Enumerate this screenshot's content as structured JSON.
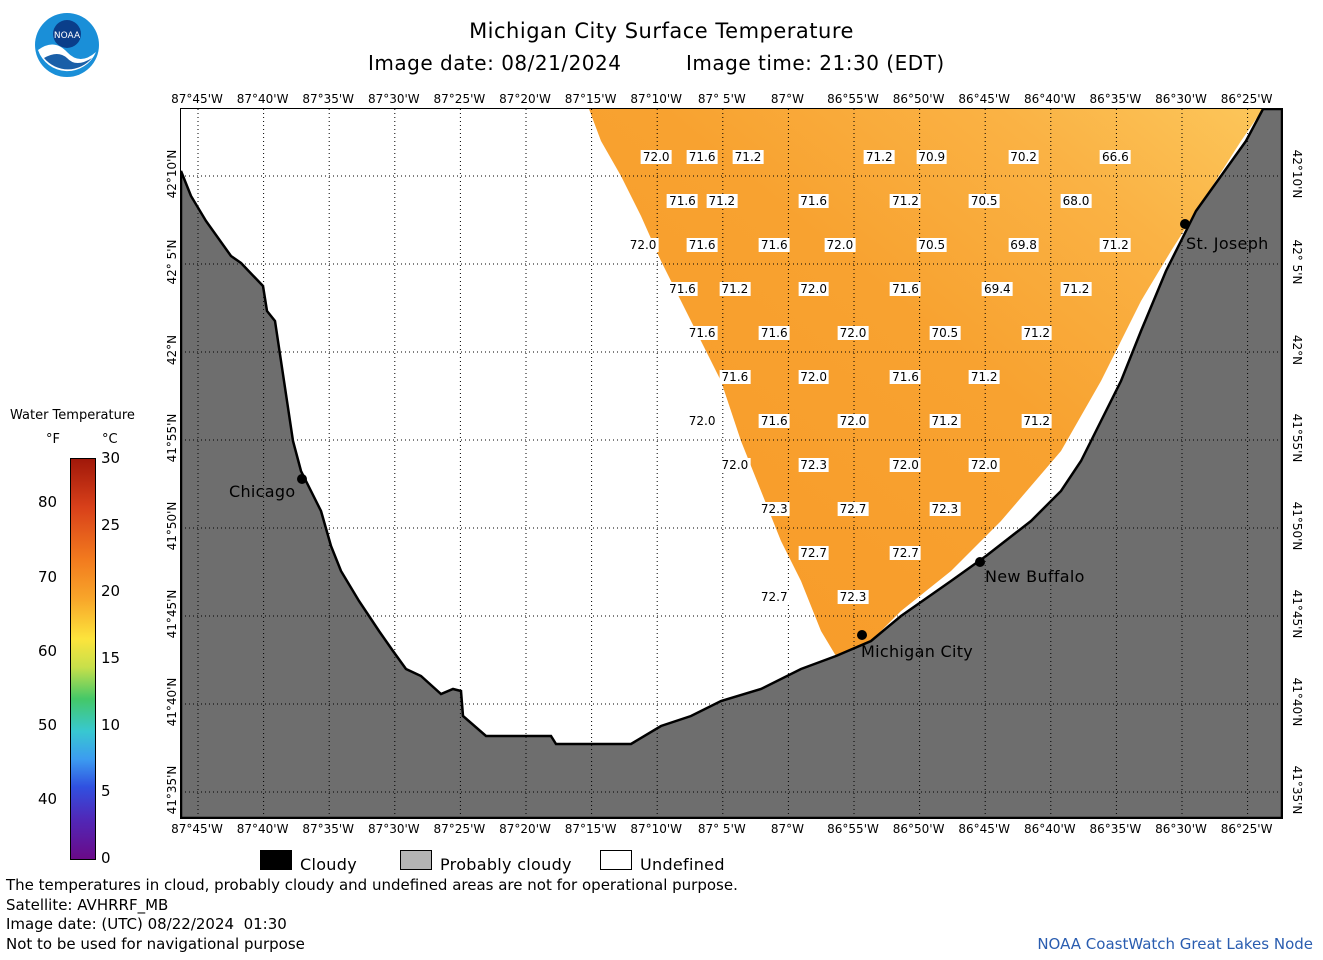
{
  "header": {
    "title": "Michigan City Surface Temperature",
    "image_date": "Image date: 08/21/2024",
    "image_time": "Image time: 21:30 (EDT)",
    "logo_text": "NOAA"
  },
  "map": {
    "lon_labels": [
      "87°45'W",
      "87°40'W",
      "87°35'W",
      "87°30'W",
      "87°25'W",
      "87°20'W",
      "87°15'W",
      "87°10'W",
      "87° 5'W",
      "87°W",
      "86°55'W",
      "86°50'W",
      "86°45'W",
      "86°40'W",
      "86°35'W",
      "86°30'W",
      "86°25'W"
    ],
    "lat_labels": [
      "42°10'N",
      "42° 5'N",
      "42°N",
      "41°55'N",
      "41°50'N",
      "41°45'N",
      "41°40'N",
      "41°35'N"
    ],
    "temperatures": [
      {
        "value": "72.0",
        "lon": "87°10'W",
        "lat": "42°11'N"
      },
      {
        "value": "71.6",
        "lon": "87°6.5'W",
        "lat": "42°11'N"
      },
      {
        "value": "71.2",
        "lon": "87°3'W",
        "lat": "42°11'N"
      },
      {
        "value": "71.2",
        "lon": "86°53'W",
        "lat": "42°11'N"
      },
      {
        "value": "70.9",
        "lon": "86°49'W",
        "lat": "42°11'N"
      },
      {
        "value": "70.2",
        "lon": "86°42'W",
        "lat": "42°11'N"
      },
      {
        "value": "66.6",
        "lon": "86°35'W",
        "lat": "42°11'N"
      },
      {
        "value": "71.6",
        "lon": "87°8'W",
        "lat": "42°8.5'N"
      },
      {
        "value": "71.2",
        "lon": "87°5'W",
        "lat": "42°8.5'N"
      },
      {
        "value": "71.6",
        "lon": "86°58'W",
        "lat": "42°8.5'N"
      },
      {
        "value": "71.2",
        "lon": "86°51'W",
        "lat": "42°8.5'N"
      },
      {
        "value": "70.5",
        "lon": "86°45'W",
        "lat": "42°8.5'N"
      },
      {
        "value": "68.0",
        "lon": "86°38'W",
        "lat": "42°8.5'N"
      },
      {
        "value": "72.0",
        "lon": "87°11'W",
        "lat": "42°6'N"
      },
      {
        "value": "71.6",
        "lon": "87°6.5'W",
        "lat": "42°6'N"
      },
      {
        "value": "71.6",
        "lon": "87°1'W",
        "lat": "42°6'N"
      },
      {
        "value": "72.0",
        "lon": "86°56'W",
        "lat": "42°6'N"
      },
      {
        "value": "70.5",
        "lon": "86°49'W",
        "lat": "42°6'N"
      },
      {
        "value": "69.8",
        "lon": "86°42'W",
        "lat": "42°6'N"
      },
      {
        "value": "71.2",
        "lon": "86°35'W",
        "lat": "42°6'N"
      },
      {
        "value": "71.6",
        "lon": "87°8'W",
        "lat": "42°3.5'N"
      },
      {
        "value": "71.2",
        "lon": "87°4'W",
        "lat": "42°3.5'N"
      },
      {
        "value": "72.0",
        "lon": "86°58'W",
        "lat": "42°3.5'N"
      },
      {
        "value": "71.6",
        "lon": "86°51'W",
        "lat": "42°3.5'N"
      },
      {
        "value": "69.4",
        "lon": "86°44'W",
        "lat": "42°3.5'N"
      },
      {
        "value": "71.2",
        "lon": "86°38'W",
        "lat": "42°3.5'N"
      },
      {
        "value": "71.6",
        "lon": "87°6.5'W",
        "lat": "42°1'N"
      },
      {
        "value": "71.6",
        "lon": "87°1'W",
        "lat": "42°1'N"
      },
      {
        "value": "72.0",
        "lon": "86°55'W",
        "lat": "42°1'N"
      },
      {
        "value": "70.5",
        "lon": "86°48'W",
        "lat": "42°1'N"
      },
      {
        "value": "71.2",
        "lon": "86°41'W",
        "lat": "42°1'N"
      },
      {
        "value": "71.6",
        "lon": "87°4'W",
        "lat": "41°58.5'N"
      },
      {
        "value": "72.0",
        "lon": "86°58'W",
        "lat": "41°58.5'N"
      },
      {
        "value": "71.6",
        "lon": "86°51'W",
        "lat": "41°58.5'N"
      },
      {
        "value": "71.2",
        "lon": "86°45'W",
        "lat": "41°58.5'N"
      },
      {
        "value": "72.0",
        "lon": "87°6.5'W",
        "lat": "41°56'N"
      },
      {
        "value": "71.6",
        "lon": "87°1'W",
        "lat": "41°56'N"
      },
      {
        "value": "72.0",
        "lon": "86°55'W",
        "lat": "41°56'N"
      },
      {
        "value": "71.2",
        "lon": "86°48'W",
        "lat": "41°56'N"
      },
      {
        "value": "71.2",
        "lon": "86°41'W",
        "lat": "41°56'N"
      },
      {
        "value": "72.0",
        "lon": "87°4'W",
        "lat": "41°53.5'N"
      },
      {
        "value": "72.3",
        "lon": "86°58'W",
        "lat": "41°53.5'N"
      },
      {
        "value": "72.0",
        "lon": "86°51'W",
        "lat": "41°53.5'N"
      },
      {
        "value": "72.0",
        "lon": "86°45'W",
        "lat": "41°53.5'N"
      },
      {
        "value": "72.3",
        "lon": "87°1'W",
        "lat": "41°51'N"
      },
      {
        "value": "72.7",
        "lon": "86°55'W",
        "lat": "41°51'N"
      },
      {
        "value": "72.3",
        "lon": "86°48'W",
        "lat": "41°51'N"
      },
      {
        "value": "72.7",
        "lon": "86°58'W",
        "lat": "41°48.5'N"
      },
      {
        "value": "72.7",
        "lon": "86°51'W",
        "lat": "41°48.5'N"
      },
      {
        "value": "72.7",
        "lon": "87°1'W",
        "lat": "41°46'N"
      },
      {
        "value": "72.3",
        "lon": "86°55'W",
        "lat": "41°46'N"
      }
    ],
    "cities": [
      {
        "name": "Chicago"
      },
      {
        "name": "St. Joseph"
      },
      {
        "name": "New Buffalo"
      },
      {
        "name": "Michigan City"
      }
    ],
    "colors": {
      "land": "#6e6e6e",
      "water_warm": "#f9a12c",
      "water_cool": "#fbc04a",
      "undefined": "#ffffff"
    }
  },
  "legend": {
    "title": "Water Temperature",
    "unit_f": "°F",
    "unit_c": "°C",
    "f_ticks": [
      "80",
      "70",
      "60",
      "50",
      "40"
    ],
    "c_ticks": [
      "30",
      "25",
      "20",
      "15",
      "10",
      "5",
      "0"
    ],
    "categories": [
      {
        "label": "Cloudy",
        "color": "#000000"
      },
      {
        "label": "Probably cloudy",
        "color": "#b4b4b4"
      },
      {
        "label": "Undefined",
        "color": "#ffffff"
      }
    ]
  },
  "footer": {
    "note": "The temperatures in cloud, probably cloudy and undefined areas are not for operational purpose.",
    "satellite": "Satellite: AVHRRF_MB",
    "utc_date": "Image date: (UTC) 08/22/2024  01:30",
    "navigation": "Not to be used for navigational purpose",
    "credit": "NOAA CoastWatch Great Lakes Node"
  }
}
